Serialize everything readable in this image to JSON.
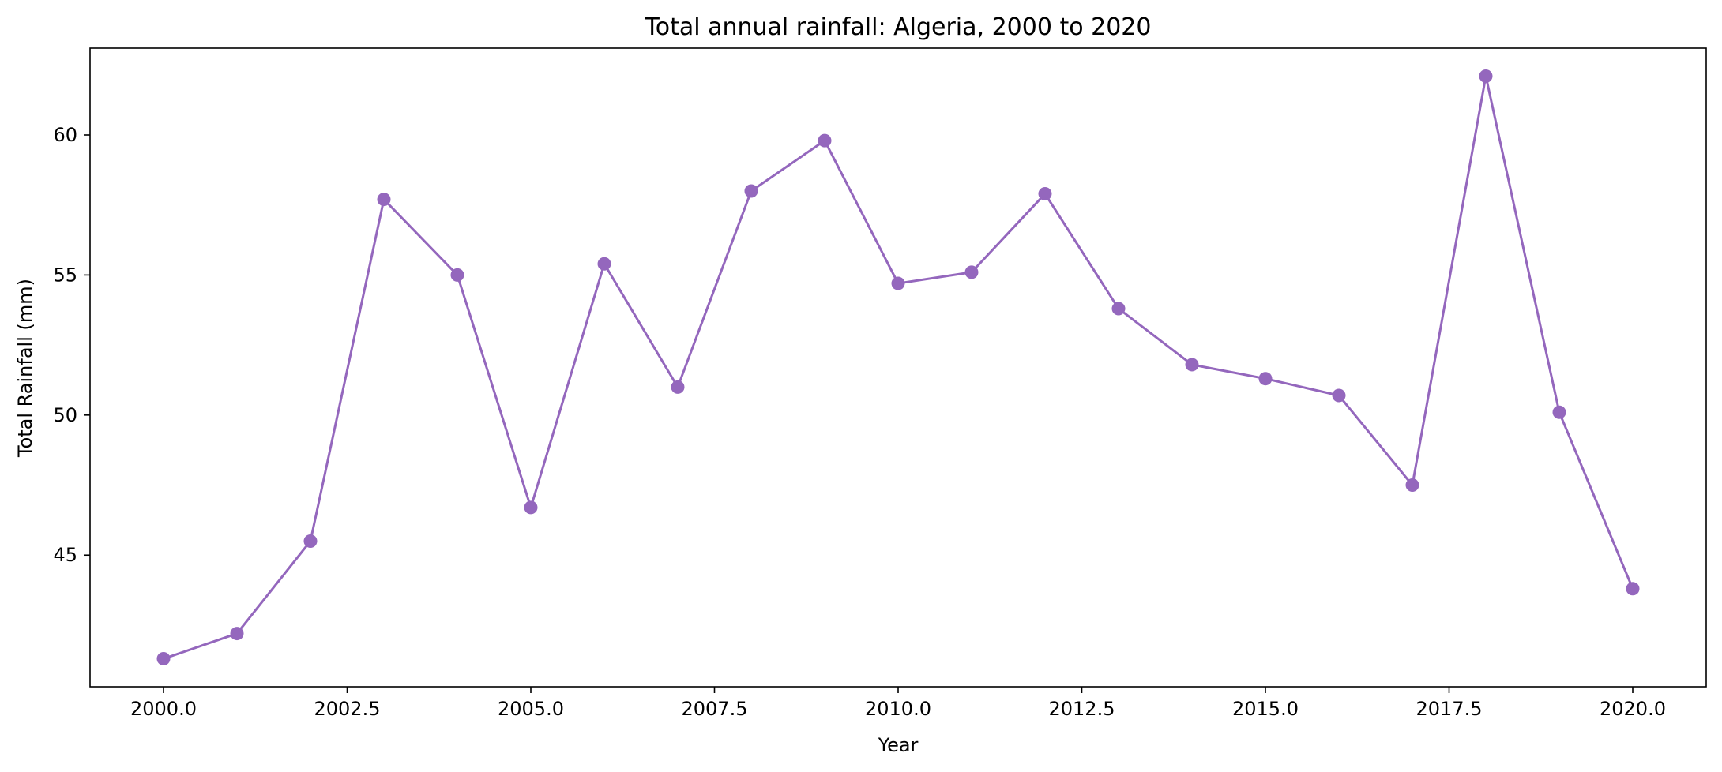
{
  "chart_data": {
    "type": "line",
    "title": "Total annual rainfall: Algeria, 2000 to 2020",
    "xlabel": "Year",
    "ylabel": "Total Rainfall (mm)",
    "xlim": [
      1999.0,
      2021.0
    ],
    "ylim": [
      40.3,
      63.1
    ],
    "x_ticks": [
      2000.0,
      2002.5,
      2005.0,
      2007.5,
      2010.0,
      2012.5,
      2015.0,
      2017.5,
      2020.0
    ],
    "x_tick_labels": [
      "2000.0",
      "2002.5",
      "2005.0",
      "2007.5",
      "2010.0",
      "2012.5",
      "2015.0",
      "2017.5",
      "2020.0"
    ],
    "y_ticks": [
      45,
      50,
      55,
      60
    ],
    "y_tick_labels": [
      "45",
      "50",
      "55",
      "60"
    ],
    "grid": false,
    "legend": "none",
    "series": [
      {
        "color": "#9467bd",
        "marker": "circle",
        "x": [
          2000,
          2001,
          2002,
          2003,
          2004,
          2005,
          2006,
          2007,
          2008,
          2009,
          2010,
          2011,
          2012,
          2013,
          2014,
          2015,
          2016,
          2017,
          2018,
          2019,
          2020
        ],
        "y": [
          41.3,
          42.2,
          45.5,
          57.7,
          55.0,
          46.7,
          55.4,
          51.0,
          58.0,
          59.8,
          54.7,
          55.1,
          57.9,
          53.8,
          51.8,
          51.3,
          50.7,
          47.5,
          62.1,
          50.1,
          43.8
        ]
      }
    ]
  }
}
